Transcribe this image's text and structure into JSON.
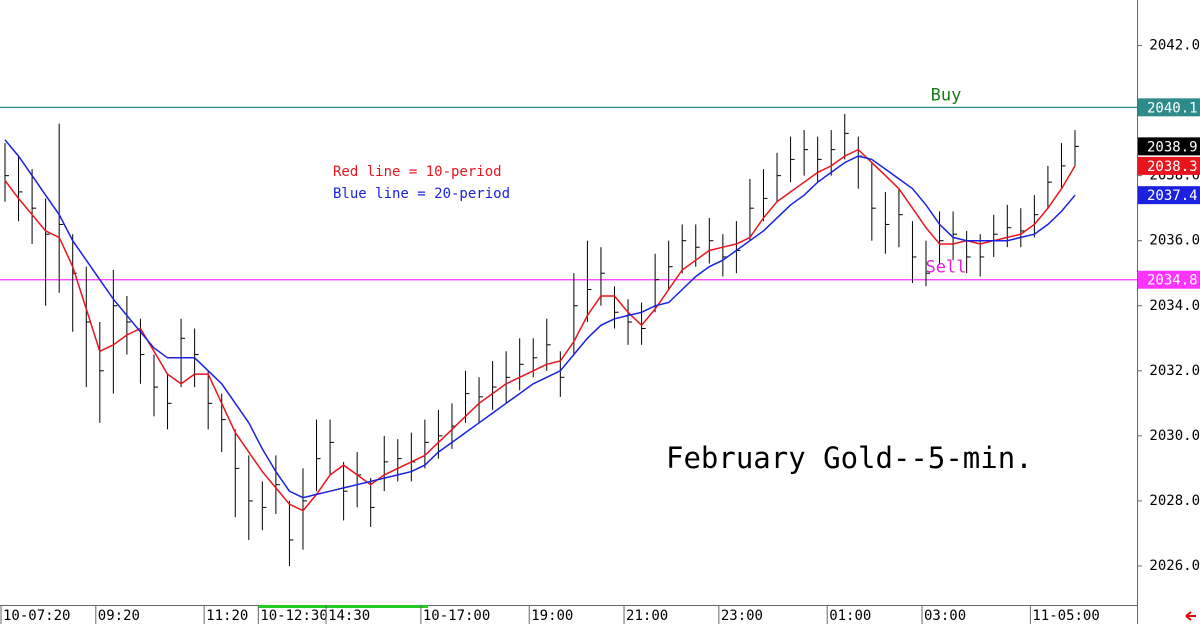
{
  "chart_data": {
    "type": "ohlc",
    "title": "February Gold--5-min.",
    "categories": [
      "10-07:20",
      null,
      null,
      null,
      null,
      null,
      null,
      "09:20",
      null,
      null,
      null,
      null,
      null,
      null,
      null,
      "11:20",
      null,
      null,
      null,
      "10-12:30",
      null,
      null,
      null,
      null,
      "14:30",
      null,
      null,
      null,
      null,
      null,
      null,
      "10-17:00",
      null,
      null,
      null,
      null,
      null,
      null,
      null,
      "19:00",
      null,
      null,
      null,
      null,
      null,
      null,
      "21:00",
      null,
      null,
      null,
      null,
      null,
      null,
      "23:00",
      null,
      null,
      null,
      null,
      null,
      null,
      null,
      "01:00",
      null,
      null,
      null,
      null,
      null,
      null,
      "03:00",
      null,
      null,
      null,
      null,
      null,
      null,
      null,
      "11-05:00",
      null,
      null,
      null
    ],
    "bars": {
      "color": "#000000",
      "high": [
        2039,
        2038.6,
        2038.2,
        2037.3,
        2039.6,
        2036.2,
        2035.2,
        2033.5,
        2035.1,
        2034.3,
        2033.6,
        2032.5,
        2031.9,
        2033.6,
        2033.3,
        2032,
        2031.3,
        2030.2,
        2029.4,
        2028.6,
        2029.4,
        2028,
        2029,
        2030.5,
        2030.5,
        2029.2,
        2029.5,
        2028.7,
        2030,
        2029.9,
        2030.1,
        2030.5,
        2030.8,
        2031,
        2032,
        2031.8,
        2032.3,
        2032.6,
        2033,
        2033,
        2033.6,
        2032.6,
        2035,
        2036,
        2035.8,
        2034.6,
        2034.2,
        2034.1,
        2035.6,
        2036,
        2036.5,
        2036.5,
        2036.7,
        2036.2,
        2036.6,
        2037.9,
        2038.2,
        2038.7,
        2039.2,
        2039.4,
        2039.2,
        2039.4,
        2039.9,
        2039.2,
        2038.4,
        2037.5,
        2037.6,
        2036.6,
        2036,
        2036.9,
        2036.9,
        2036.3,
        2036.2,
        2036.8,
        2037.1,
        2037,
        2037.4,
        2038.3,
        2039,
        2039.4
      ],
      "low": [
        2037.2,
        2036.6,
        2035.9,
        2034,
        2034.4,
        2033.2,
        2031.5,
        2030.4,
        2031.3,
        2032.5,
        2031.6,
        2030.6,
        2030.2,
        2031.5,
        2031.5,
        2030.2,
        2029.5,
        2027.5,
        2026.8,
        2027.1,
        2027.6,
        2026,
        2026.5,
        2028.3,
        2028.8,
        2027.4,
        2027.8,
        2027.2,
        2028.3,
        2028.6,
        2028.6,
        2029,
        2029.3,
        2029.6,
        2030.4,
        2030.4,
        2030.8,
        2031,
        2031.4,
        2031.8,
        2032,
        2031.2,
        2032.5,
        2033.5,
        2034,
        2033.3,
        2032.8,
        2032.8,
        2033.8,
        2034.5,
        2035,
        2035.2,
        2035.3,
        2034.9,
        2035,
        2036,
        2036.6,
        2037.2,
        2037.8,
        2038,
        2037.8,
        2038,
        2038.5,
        2037.6,
        2036,
        2035.6,
        2035.8,
        2034.7,
        2034.6,
        2035.3,
        2035.4,
        2035,
        2034.9,
        2035.5,
        2035.8,
        2035.8,
        2036.1,
        2037,
        2037.6,
        2038.3
      ],
      "close": [
        2038,
        2037.5,
        2037,
        2036.2,
        2036.5,
        2035,
        2033.5,
        2032,
        2034,
        2033.5,
        2032.5,
        2031.5,
        2031,
        2033,
        2032.5,
        2031,
        2030.5,
        2029,
        2028,
        2027.8,
        2028.5,
        2026.8,
        2028,
        2029.3,
        2029.8,
        2028.3,
        2028.8,
        2027.8,
        2029.2,
        2029.3,
        2029.2,
        2029.8,
        2030,
        2030.3,
        2031.3,
        2031.2,
        2031.5,
        2031.8,
        2032.2,
        2032.4,
        2032.8,
        2031.8,
        2034,
        2034.5,
        2035,
        2033.8,
        2033.5,
        2033.3,
        2034.8,
        2035.2,
        2036,
        2035.8,
        2036,
        2035.5,
        2035.7,
        2037,
        2037.3,
        2038,
        2038.5,
        2038.8,
        2038.5,
        2038.8,
        2039.3,
        2038.6,
        2037,
        2036.5,
        2036.8,
        2035.5,
        2035,
        2036,
        2036.2,
        2035.5,
        2035.5,
        2036.2,
        2036.4,
        2036.3,
        2036.8,
        2037.8,
        2038.3,
        2038.9
      ]
    },
    "series": [
      {
        "name": "Red line = 10-period",
        "color": "#e8141e",
        "values": [
          2037.85,
          2037.3,
          2036.8,
          2036.3,
          2036.1,
          2035.2,
          2033.9,
          2032.6,
          2032.8,
          2033.1,
          2033.3,
          2032.6,
          2031.9,
          2031.6,
          2031.9,
          2031.9,
          2031,
          2030.1,
          2029.5,
          2028.9,
          2028.4,
          2027.9,
          2027.7,
          2028.2,
          2028.8,
          2029.1,
          2028.8,
          2028.5,
          2028.8,
          2029,
          2029.2,
          2029.4,
          2029.8,
          2030.2,
          2030.6,
          2031,
          2031.3,
          2031.6,
          2031.8,
          2032,
          2032.2,
          2032.3,
          2032.9,
          2033.7,
          2034.3,
          2034.3,
          2033.8,
          2033.4,
          2033.9,
          2034.5,
          2035.1,
          2035.4,
          2035.7,
          2035.8,
          2035.9,
          2036.1,
          2036.7,
          2037.2,
          2037.5,
          2037.8,
          2038.1,
          2038.3,
          2038.6,
          2038.8,
          2038.4,
          2038,
          2037.6,
          2037,
          2036.4,
          2035.9,
          2035.9,
          2036,
          2035.9,
          2036,
          2036.1,
          2036.2,
          2036.5,
          2037,
          2037.6,
          2038.3
        ]
      },
      {
        "name": "Blue line = 20-period",
        "color": "#1a22e0",
        "values": [
          2039.1,
          2038.6,
          2038,
          2037.4,
          2036.8,
          2036,
          2035.4,
          2034.8,
          2034.2,
          2033.7,
          2033.2,
          2032.7,
          2032.4,
          2032.4,
          2032.4,
          2032,
          2031.6,
          2031,
          2030.4,
          2029.6,
          2028.9,
          2028.3,
          2028.1,
          2028.2,
          2028.3,
          2028.4,
          2028.5,
          2028.6,
          2028.7,
          2028.8,
          2028.9,
          2029.1,
          2029.5,
          2029.8,
          2030.1,
          2030.4,
          2030.7,
          2031,
          2031.3,
          2031.6,
          2031.8,
          2032,
          2032.5,
          2033,
          2033.4,
          2033.6,
          2033.7,
          2033.8,
          2034,
          2034.1,
          2034.5,
          2034.9,
          2035.2,
          2035.4,
          2035.7,
          2036,
          2036.3,
          2036.7,
          2037.1,
          2037.4,
          2037.8,
          2038.1,
          2038.4,
          2038.6,
          2038.5,
          2038.2,
          2037.9,
          2037.6,
          2037.1,
          2036.5,
          2036.1,
          2036,
          2036,
          2036,
          2036,
          2036.1,
          2036.2,
          2036.5,
          2036.9,
          2037.4
        ]
      }
    ],
    "levels": [
      {
        "name": "Buy",
        "value": 2040.1,
        "color": "#2e8b8b",
        "text_color": "#1a7a1a"
      },
      {
        "name": "Sell",
        "value": 2034.8,
        "color": "#ff33ff",
        "text_color": "#e020e0"
      }
    ],
    "ylim": [
      2024.8,
      2043.4
    ],
    "yticks": [
      {
        "value": 2026,
        "label": "2026.0"
      },
      {
        "value": 2028,
        "label": "2028.0"
      },
      {
        "value": 2030,
        "label": "2030.0"
      },
      {
        "value": 2032,
        "label": "2032.0"
      },
      {
        "value": 2034,
        "label": "2034.0"
      },
      {
        "value": 2036,
        "label": "2036.0"
      },
      {
        "value": 2038,
        "label": "2038.0"
      },
      {
        "value": 2040,
        "label": "2040.0"
      },
      {
        "value": 2042,
        "label": "2042.0"
      }
    ]
  }
}
